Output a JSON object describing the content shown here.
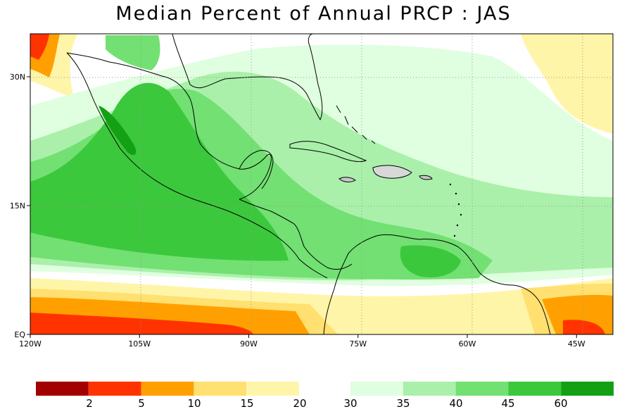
{
  "title": "Median Percent of Annual PRCP  :  JAS",
  "map": {
    "lon_range": [
      -120,
      -40
    ],
    "lat_range": [
      0,
      35
    ],
    "lon_ticks": [
      {
        "lon": -120,
        "label": "120W"
      },
      {
        "lon": -105,
        "label": "105W"
      },
      {
        "lon": -90,
        "label": "90W"
      },
      {
        "lon": -75,
        "label": "75W"
      },
      {
        "lon": -60,
        "label": "60W"
      },
      {
        "lon": -45,
        "label": "45W"
      }
    ],
    "lat_ticks": [
      {
        "lat": 0,
        "label": "EQ"
      },
      {
        "lat": 15,
        "label": "15N"
      },
      {
        "lat": 30,
        "label": "30N"
      }
    ],
    "gridlines": true
  },
  "colorbar": {
    "low_colors": [
      "#a30000",
      "#ff3300",
      "#ffa000",
      "#ffe070",
      "#fff5a8"
    ],
    "high_colors": [
      "#e0ffe0",
      "#aaf0aa",
      "#72e072",
      "#3cc83c",
      "#14a014"
    ],
    "labels": [
      "2",
      "5",
      "10",
      "15",
      "20",
      "30",
      "35",
      "40",
      "45",
      "60"
    ]
  },
  "colors": {
    "land_border": "#000000",
    "state_border": "#a0a0a0",
    "grid": "#999999"
  }
}
